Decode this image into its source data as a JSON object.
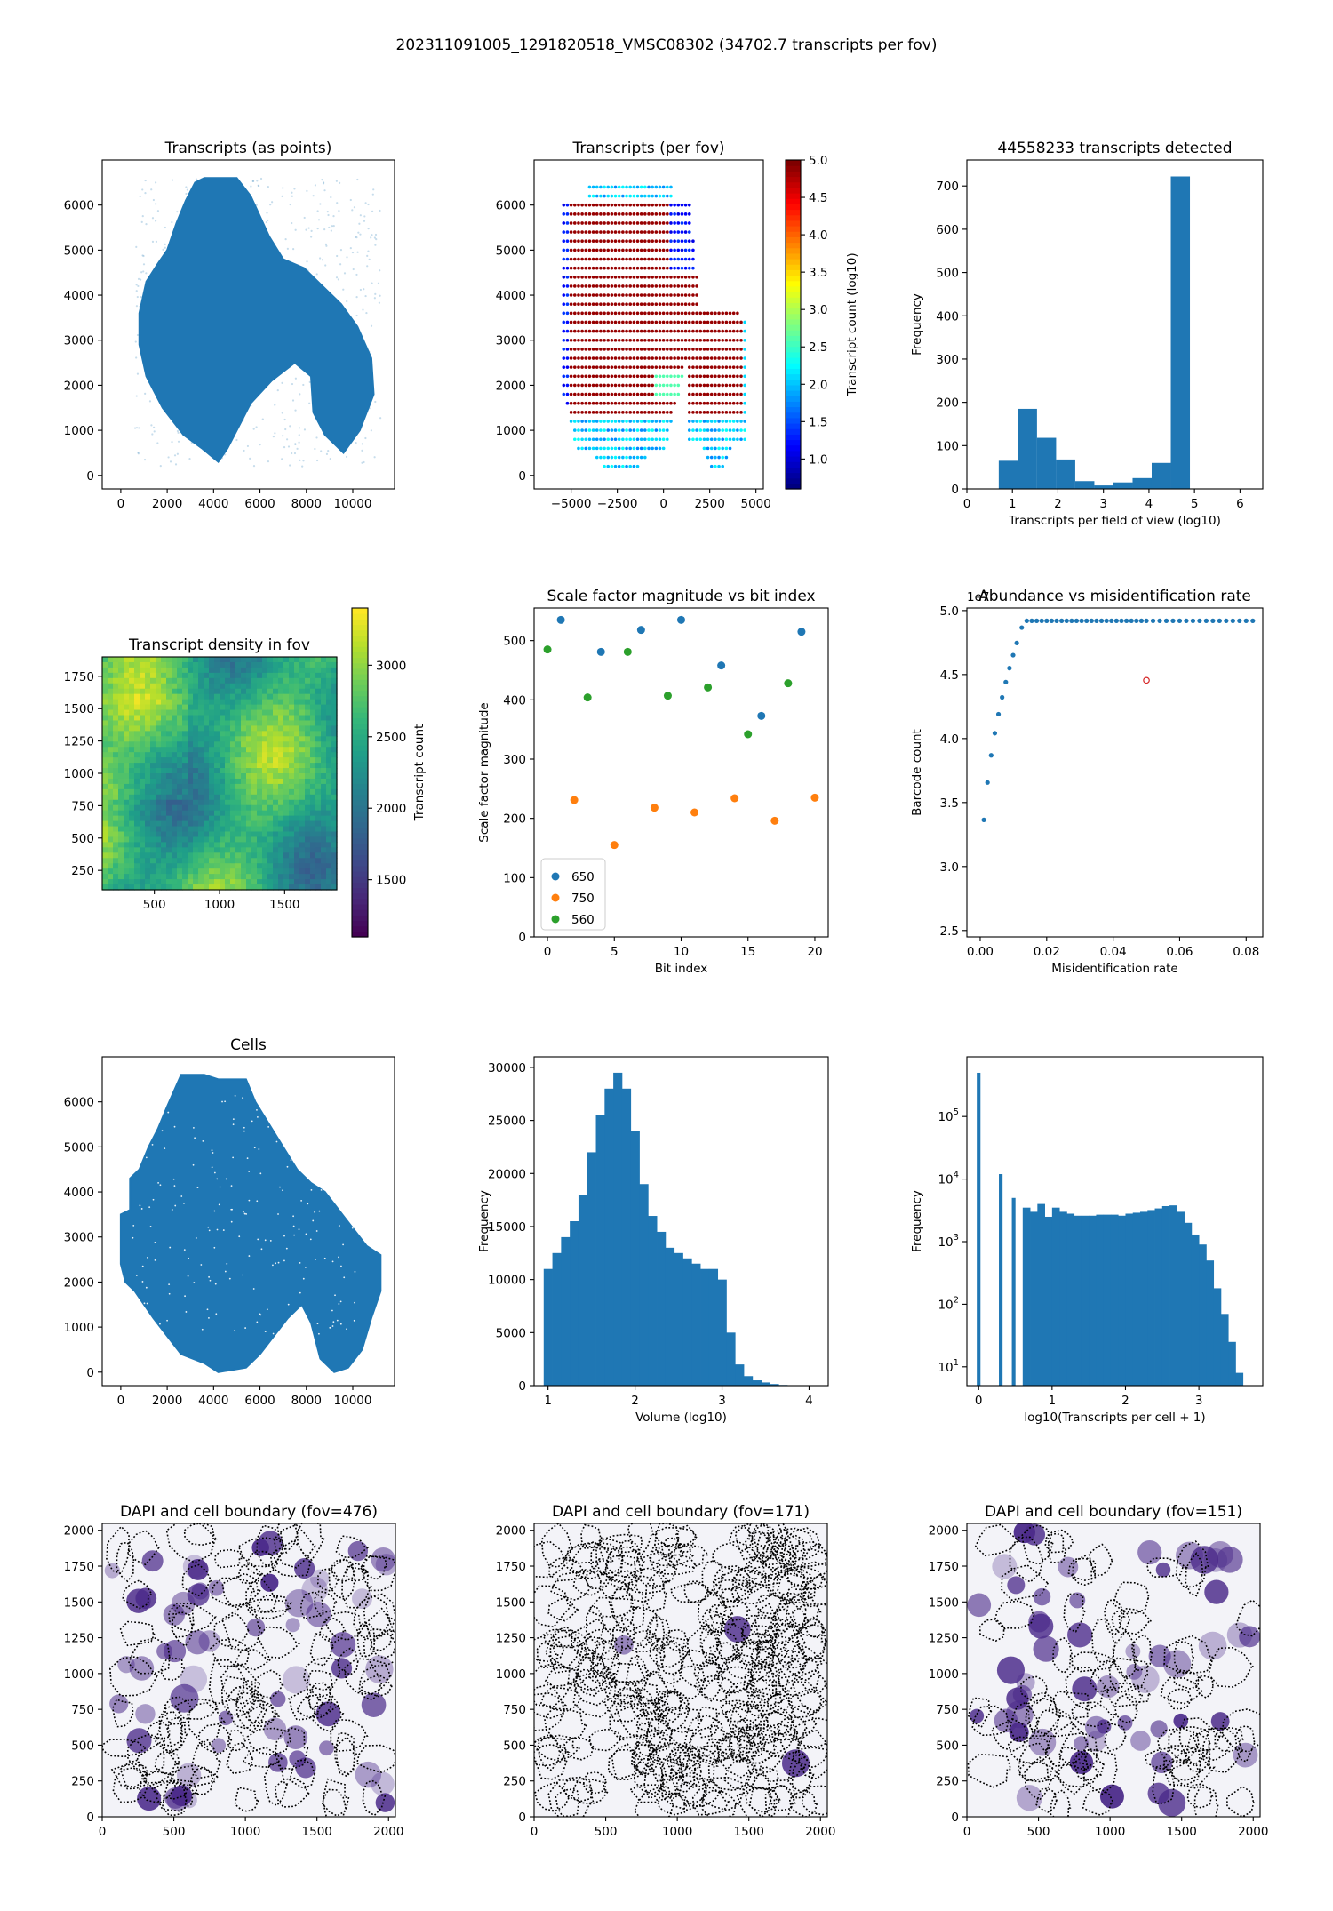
{
  "suptitle": "202311091005_1291820518_VMSC08302 (34702.7 transcripts per fov)",
  "colors": {
    "tab_blue": "#1f77b4",
    "tab_orange": "#ff7f0e",
    "tab_green": "#2ca02c",
    "dapi": "#4b2a8a"
  },
  "chart_data": [
    {
      "type": "scatter",
      "title": "Transcripts (as points)",
      "xlabel": "",
      "ylabel": "",
      "xlim": [
        -800,
        11800
      ],
      "ylim": [
        -300,
        7000
      ],
      "xticks": [
        0,
        2000,
        4000,
        6000,
        8000,
        10000
      ],
      "yticks": [
        0,
        1000,
        2000,
        3000,
        4000,
        5000,
        6000
      ],
      "tissue_outline": [
        [
          800,
          3600
        ],
        [
          1100,
          4300
        ],
        [
          1600,
          4700
        ],
        [
          2000,
          5000
        ],
        [
          2400,
          5600
        ],
        [
          2800,
          6100
        ],
        [
          3200,
          6500
        ],
        [
          3600,
          6600
        ],
        [
          5000,
          6600
        ],
        [
          5600,
          6200
        ],
        [
          6400,
          5300
        ],
        [
          7000,
          4800
        ],
        [
          7900,
          4600
        ],
        [
          8700,
          4200
        ],
        [
          9500,
          3800
        ],
        [
          10200,
          3300
        ],
        [
          10800,
          2600
        ],
        [
          10900,
          1800
        ],
        [
          10300,
          1000
        ],
        [
          9600,
          500
        ],
        [
          8800,
          900
        ],
        [
          8300,
          1400
        ],
        [
          8200,
          2200
        ],
        [
          7500,
          2500
        ],
        [
          6500,
          2100
        ],
        [
          5600,
          1600
        ],
        [
          5000,
          1000
        ],
        [
          4600,
          600
        ],
        [
          4200,
          300
        ],
        [
          3500,
          600
        ],
        [
          2700,
          900
        ],
        [
          1800,
          1500
        ],
        [
          1100,
          2200
        ],
        [
          800,
          2900
        ]
      ]
    },
    {
      "type": "scatter",
      "title": "Transcripts (per fov)",
      "xlabel": "",
      "ylabel": "",
      "xlim": [
        -7000,
        5400
      ],
      "ylim": [
        -300,
        7000
      ],
      "xticks": [
        -5000,
        -2500,
        0,
        2500,
        5000
      ],
      "yticks": [
        0,
        1000,
        2000,
        3000,
        4000,
        5000,
        6000
      ],
      "colorbar": {
        "label": "Transcript count (log10)",
        "range": [
          0.6,
          5.0
        ],
        "ticks": [
          1.0,
          1.5,
          2.0,
          2.5,
          3.0,
          3.5,
          4.0,
          4.5,
          5.0
        ]
      }
    },
    {
      "type": "bar",
      "title": "44558233 transcripts detected",
      "xlabel": "Transcripts per field of view (log10)",
      "ylabel": "Frequency",
      "xlim": [
        0,
        6.5
      ],
      "ylim": [
        0,
        760
      ],
      "xticks": [
        0,
        1,
        2,
        3,
        4,
        5,
        6
      ],
      "yticks": [
        0,
        100,
        200,
        300,
        400,
        500,
        600,
        700
      ],
      "bin_edges": [
        0.7,
        1.12,
        1.54,
        1.96,
        2.38,
        2.8,
        3.22,
        3.64,
        4.06,
        4.48,
        4.9
      ],
      "values": [
        65,
        185,
        118,
        68,
        18,
        8,
        15,
        25,
        60,
        722
      ]
    },
    {
      "type": "heatmap",
      "title": "Transcript density in fov",
      "xlabel": "",
      "ylabel": "",
      "xlim": [
        100,
        1900
      ],
      "ylim": [
        100,
        1900
      ],
      "xticks": [
        500,
        1000,
        1500
      ],
      "yticks": [
        250,
        500,
        750,
        1000,
        1250,
        1500,
        1750
      ],
      "colorbar": {
        "label": "Transcript count",
        "range": [
          1100,
          3400
        ],
        "ticks": [
          1500,
          2000,
          2500,
          3000
        ]
      }
    },
    {
      "type": "scatter",
      "title": "Scale factor magnitude vs bit index",
      "xlabel": "Bit index",
      "ylabel": "Scale factor magnitude",
      "xlim": [
        -1,
        21
      ],
      "ylim": [
        0,
        555
      ],
      "xticks": [
        0,
        5,
        10,
        15,
        20
      ],
      "yticks": [
        0,
        100,
        200,
        300,
        400,
        500
      ],
      "legend_position": "lower-left",
      "series": [
        {
          "name": "650",
          "x": [
            1,
            4,
            7,
            10,
            13,
            16,
            19
          ],
          "y": [
            535,
            481,
            518,
            535,
            458,
            373,
            515
          ]
        },
        {
          "name": "750",
          "x": [
            2,
            5,
            8,
            11,
            14,
            17,
            20
          ],
          "y": [
            231,
            155,
            218,
            210,
            234,
            196,
            235
          ]
        },
        {
          "name": "560",
          "x": [
            0,
            3,
            6,
            9,
            12,
            15,
            18
          ],
          "y": [
            485,
            404,
            481,
            407,
            421,
            342,
            428
          ]
        }
      ]
    },
    {
      "type": "scatter",
      "title": "Abundance vs misidentification rate",
      "xlabel": "Misidentification rate",
      "ylabel": "Barcode count",
      "offset_label": "1e7",
      "xlim": [
        -0.004,
        0.085
      ],
      "ylim": [
        2.45,
        5.02
      ],
      "xticks": [
        0.0,
        0.02,
        0.04,
        0.06,
        0.08
      ],
      "yticks": [
        2.5,
        3.0,
        3.5,
        4.0,
        4.5,
        5.0
      ],
      "highlight_point": [
        0.05,
        4.455
      ]
    },
    {
      "type": "scatter",
      "title": "Cells",
      "xlabel": "",
      "ylabel": "",
      "xlim": [
        -800,
        11800
      ],
      "ylim": [
        -300,
        7000
      ],
      "xticks": [
        0,
        2000,
        4000,
        6000,
        8000,
        10000
      ],
      "yticks": [
        0,
        1000,
        2000,
        3000,
        4000,
        5000,
        6000
      ],
      "tissue_outline": [
        [
          0,
          2400
        ],
        [
          0,
          3500
        ],
        [
          400,
          3600
        ],
        [
          400,
          4300
        ],
        [
          800,
          4500
        ],
        [
          1200,
          5000
        ],
        [
          1600,
          5400
        ],
        [
          2000,
          5900
        ],
        [
          2600,
          6600
        ],
        [
          3600,
          6600
        ],
        [
          4200,
          6500
        ],
        [
          5400,
          6500
        ],
        [
          5800,
          6000
        ],
        [
          6400,
          5500
        ],
        [
          7000,
          5000
        ],
        [
          7600,
          4500
        ],
        [
          8200,
          4200
        ],
        [
          8800,
          4000
        ],
        [
          9400,
          3600
        ],
        [
          10000,
          3200
        ],
        [
          10600,
          2800
        ],
        [
          11200,
          2600
        ],
        [
          11200,
          1800
        ],
        [
          10800,
          1200
        ],
        [
          10400,
          500
        ],
        [
          9800,
          100
        ],
        [
          9200,
          0
        ],
        [
          8600,
          300
        ],
        [
          8200,
          1100
        ],
        [
          7800,
          1500
        ],
        [
          7200,
          1200
        ],
        [
          6600,
          800
        ],
        [
          6000,
          400
        ],
        [
          5400,
          100
        ],
        [
          4200,
          0
        ],
        [
          3600,
          200
        ],
        [
          2600,
          400
        ],
        [
          2000,
          800
        ],
        [
          1400,
          1200
        ],
        [
          1000,
          1500
        ],
        [
          600,
          1800
        ],
        [
          200,
          2000
        ]
      ]
    },
    {
      "type": "bar",
      "title": "",
      "xlabel": "Volume (log10)",
      "ylabel": "Frequency",
      "xlim": [
        0.84,
        4.22
      ],
      "ylim": [
        0,
        31000
      ],
      "xticks": [
        1,
        2,
        3,
        4
      ],
      "yticks": [
        0,
        5000,
        10000,
        15000,
        20000,
        25000,
        30000
      ],
      "bin_edges": [
        0.95,
        1.05,
        1.15,
        1.25,
        1.35,
        1.45,
        1.55,
        1.65,
        1.75,
        1.85,
        1.95,
        2.05,
        2.15,
        2.25,
        2.35,
        2.45,
        2.55,
        2.65,
        2.75,
        2.85,
        2.95,
        3.05,
        3.15,
        3.25,
        3.35,
        3.45,
        3.55,
        3.65,
        3.75
      ],
      "values": [
        11000,
        12500,
        14000,
        15500,
        18000,
        22000,
        25500,
        28000,
        29500,
        28000,
        24000,
        19000,
        16000,
        14500,
        13000,
        12500,
        12000,
        11500,
        11000,
        11000,
        10000,
        5000,
        2000,
        900,
        500,
        300,
        150,
        60
      ]
    },
    {
      "type": "bar",
      "title": "",
      "xlabel": "log10(Transcripts per cell + 1)",
      "ylabel": "Frequency",
      "log_y": true,
      "xlim": [
        -0.16,
        3.87
      ],
      "ylim": [
        5,
        900000
      ],
      "xticks": [
        0,
        1,
        2,
        3
      ],
      "yticks": [
        10,
        100,
        1000,
        10000,
        100000
      ],
      "spikes": [
        {
          "x": 0.0,
          "value": 500000
        },
        {
          "x": 0.301,
          "value": 12000
        },
        {
          "x": 0.477,
          "value": 5000
        }
      ],
      "bin_edges": [
        0.6,
        0.7,
        0.8,
        0.9,
        1.0,
        1.1,
        1.2,
        1.3,
        1.4,
        1.5,
        1.6,
        1.7,
        1.8,
        1.9,
        2.0,
        2.1,
        2.2,
        2.3,
        2.4,
        2.5,
        2.6,
        2.7,
        2.8,
        2.9,
        3.0,
        3.1,
        3.2,
        3.3,
        3.4,
        3.5,
        3.6,
        3.7
      ],
      "values": [
        3500,
        3000,
        4000,
        2500,
        3500,
        3000,
        2800,
        2600,
        2600,
        2600,
        2700,
        2700,
        2700,
        2600,
        2800,
        2900,
        3000,
        3200,
        3400,
        3700,
        3800,
        3000,
        2000,
        1300,
        900,
        500,
        180,
        70,
        25,
        8,
        5
      ]
    },
    {
      "type": "heatmap",
      "title": "DAPI and cell boundary (fov=476)",
      "xlabel": "",
      "ylabel": "",
      "xlim": [
        0,
        2048
      ],
      "ylim": [
        0,
        2048
      ],
      "xticks": [
        0,
        500,
        1000,
        1500,
        2000
      ],
      "yticks": [
        0,
        250,
        500,
        750,
        1000,
        1250,
        1500,
        1750,
        2000
      ]
    },
    {
      "type": "heatmap",
      "title": "DAPI and cell boundary (fov=171)",
      "xlabel": "",
      "ylabel": "",
      "xlim": [
        0,
        2048
      ],
      "ylim": [
        0,
        2048
      ],
      "xticks": [
        0,
        500,
        1000,
        1500,
        2000
      ],
      "yticks": [
        0,
        250,
        500,
        750,
        1000,
        1250,
        1500,
        1750,
        2000
      ]
    },
    {
      "type": "heatmap",
      "title": "DAPI and cell boundary (fov=151)",
      "xlabel": "",
      "ylabel": "",
      "xlim": [
        0,
        2048
      ],
      "ylim": [
        0,
        2048
      ],
      "xticks": [
        0,
        500,
        1000,
        1500,
        2000
      ],
      "yticks": [
        0,
        250,
        500,
        750,
        1000,
        1250,
        1500,
        1750,
        2000
      ]
    }
  ]
}
